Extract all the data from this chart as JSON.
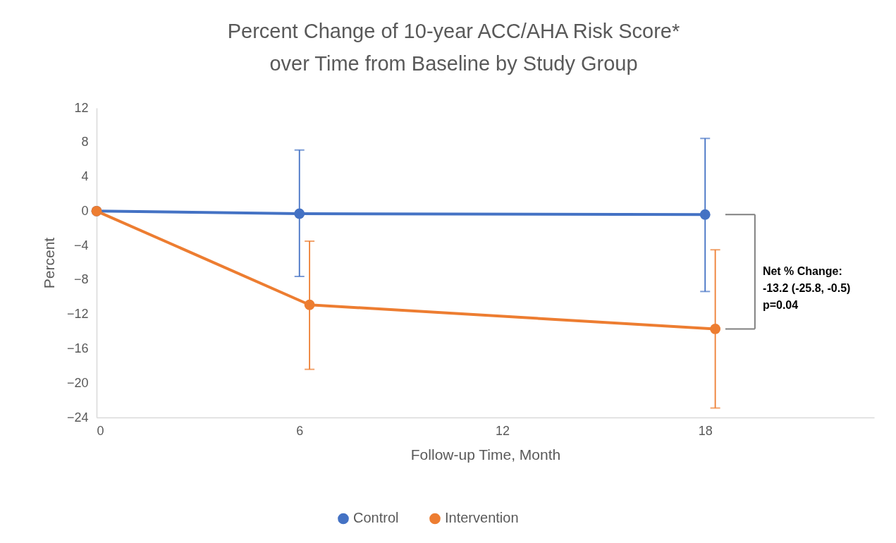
{
  "chart_data": {
    "type": "line",
    "title": "Percent Change of 10-year ACC/AHA Risk Score*\nover Time from Baseline by Study Group",
    "xlabel": "Follow-up Time, Month",
    "ylabel": "Percent",
    "series": [
      {
        "name": "Control",
        "color": "#4472c4",
        "x": [
          0,
          6,
          18
        ],
        "values": [
          0,
          -0.3,
          -0.4
        ],
        "errors": [
          null,
          [
            -7.6,
            7.1
          ],
          [
            -9.35,
            8.45
          ]
        ]
      },
      {
        "name": "Intervention",
        "color": "#ed7d31",
        "x": [
          0,
          6.3,
          18.3
        ],
        "values": [
          0,
          -10.9,
          -13.7
        ],
        "errors": [
          null,
          [
            -18.4,
            -3.5
          ],
          [
            -22.9,
            -4.5
          ]
        ]
      }
    ],
    "xlim": [
      0,
      23
    ],
    "xticks": [
      0,
      6,
      12,
      18
    ],
    "ylim": [
      -24,
      12
    ],
    "yticks": [
      -24,
      -20,
      -16,
      -12,
      -8,
      -4,
      0,
      4,
      8,
      12
    ],
    "annotations": [
      "Net % Change:\n-13.2  (-25.8, -0.5)\np=0.04"
    ],
    "grid": false,
    "legend": "bottom",
    "marker": "circle",
    "line_style": "solid"
  }
}
